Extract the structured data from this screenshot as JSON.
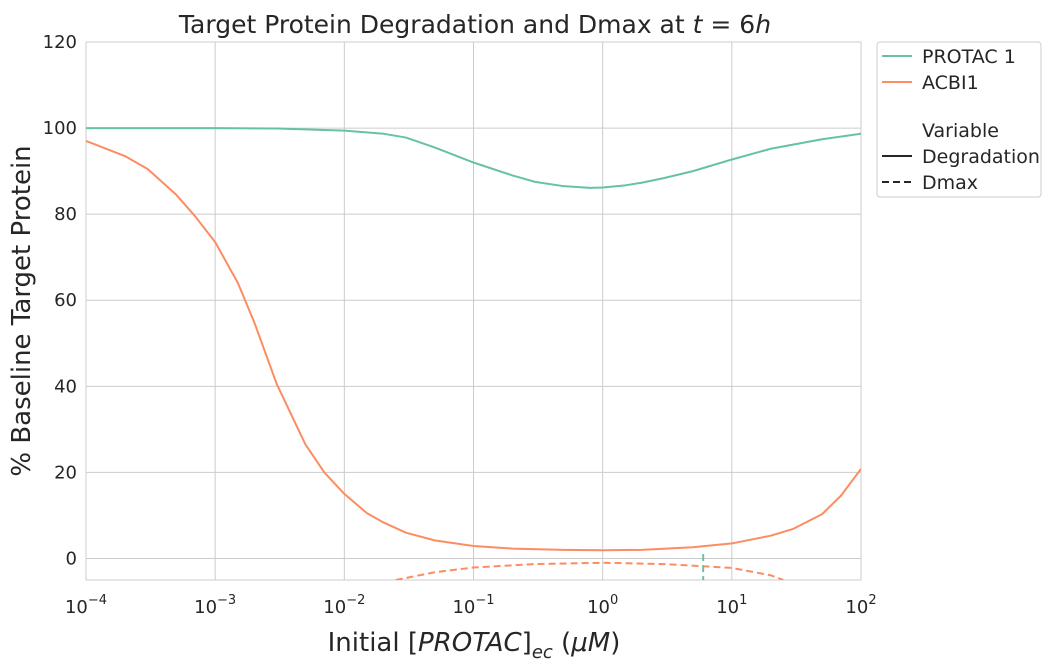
{
  "chart_data": {
    "type": "line",
    "title_prefix": "Target Protein Degradation and Dmax at ",
    "title_math_t": "t",
    "title_math_rest": " = 6",
    "title_math_h": "h",
    "xlabel_prefix": "Initial [",
    "xlabel_math": "PROTAC",
    "xlabel_suffix": "]",
    "xlabel_sub": "ec",
    "xlabel_unit_open": " (",
    "xlabel_unit_mu": "μ",
    "xlabel_unit_M": "M",
    "xlabel_unit_close": ")",
    "ylabel": "% Baseline Target Protein",
    "xscale": "log",
    "xlim": [
      0.0001,
      100
    ],
    "ylim": [
      -5,
      120
    ],
    "grid": true,
    "yticks": [
      0,
      20,
      40,
      60,
      80,
      100,
      120
    ],
    "xticks": [
      {
        "value": 0.0001,
        "base": "10",
        "exp": "−4"
      },
      {
        "value": 0.001,
        "base": "10",
        "exp": "−3"
      },
      {
        "value": 0.01,
        "base": "10",
        "exp": "−2"
      },
      {
        "value": 0.1,
        "base": "10",
        "exp": "−1"
      },
      {
        "value": 1,
        "base": "10",
        "exp": "0"
      },
      {
        "value": 10,
        "base": "10",
        "exp": "1"
      },
      {
        "value": 100,
        "base": "10",
        "exp": "2"
      }
    ],
    "colors": {
      "PROTAC 1": "#66c2a5",
      "ACBI1": "#fc8d62"
    },
    "legend": {
      "position": "outside-top-right",
      "hue_entries": [
        "PROTAC 1",
        "ACBI1"
      ],
      "style_title": "Variable",
      "style_entries": [
        {
          "label": "Degradation",
          "dash": "solid"
        },
        {
          "label": "Dmax",
          "dash": "dashed"
        }
      ]
    },
    "series": [
      {
        "name": "PROTAC 1",
        "variable": "Degradation",
        "color": "#66c2a5",
        "dash": "solid",
        "x": [
          0.0001,
          0.001,
          0.003,
          0.01,
          0.02,
          0.03,
          0.05,
          0.1,
          0.2,
          0.3,
          0.5,
          0.8,
          1,
          1.5,
          2,
          3,
          5,
          10,
          20,
          50,
          100
        ],
        "y": [
          100,
          100,
          99.9,
          99.4,
          98.7,
          97.8,
          95.5,
          92,
          89,
          87.5,
          86.5,
          86.1,
          86.2,
          86.7,
          87.3,
          88.4,
          90,
          92.7,
          95.2,
          97.4,
          98.7
        ]
      },
      {
        "name": "ACBI1",
        "variable": "Degradation",
        "color": "#fc8d62",
        "dash": "solid",
        "x": [
          0.0001,
          0.0002,
          0.0003,
          0.0005,
          0.0007,
          0.001,
          0.0015,
          0.002,
          0.003,
          0.005,
          0.007,
          0.01,
          0.015,
          0.02,
          0.03,
          0.05,
          0.1,
          0.2,
          0.5,
          1,
          2,
          5,
          10,
          20,
          30,
          50,
          70,
          100
        ],
        "y": [
          97,
          93.5,
          90.5,
          84.5,
          79.5,
          73.5,
          64,
          55,
          40.5,
          26.5,
          20,
          15,
          10.5,
          8.4,
          6,
          4.2,
          2.9,
          2.3,
          2,
          1.9,
          2,
          2.6,
          3.5,
          5.3,
          6.9,
          10.3,
          14.6,
          20.8
        ]
      },
      {
        "name": "ACBI1",
        "variable": "Dmax",
        "color": "#fc8d62",
        "dash": "dashed",
        "x": [
          0.025,
          0.05,
          0.1,
          0.3,
          1,
          3,
          10,
          20,
          25
        ],
        "y": [
          -5,
          -3.2,
          -2.1,
          -1.3,
          -1,
          -1.3,
          -2.2,
          -3.9,
          -5
        ]
      },
      {
        "name": "PROTAC 1",
        "variable": "Dmax",
        "color": "#66c2a5",
        "dash": "dashed",
        "x": [
          6,
          6
        ],
        "y": [
          1,
          -5
        ]
      }
    ]
  }
}
